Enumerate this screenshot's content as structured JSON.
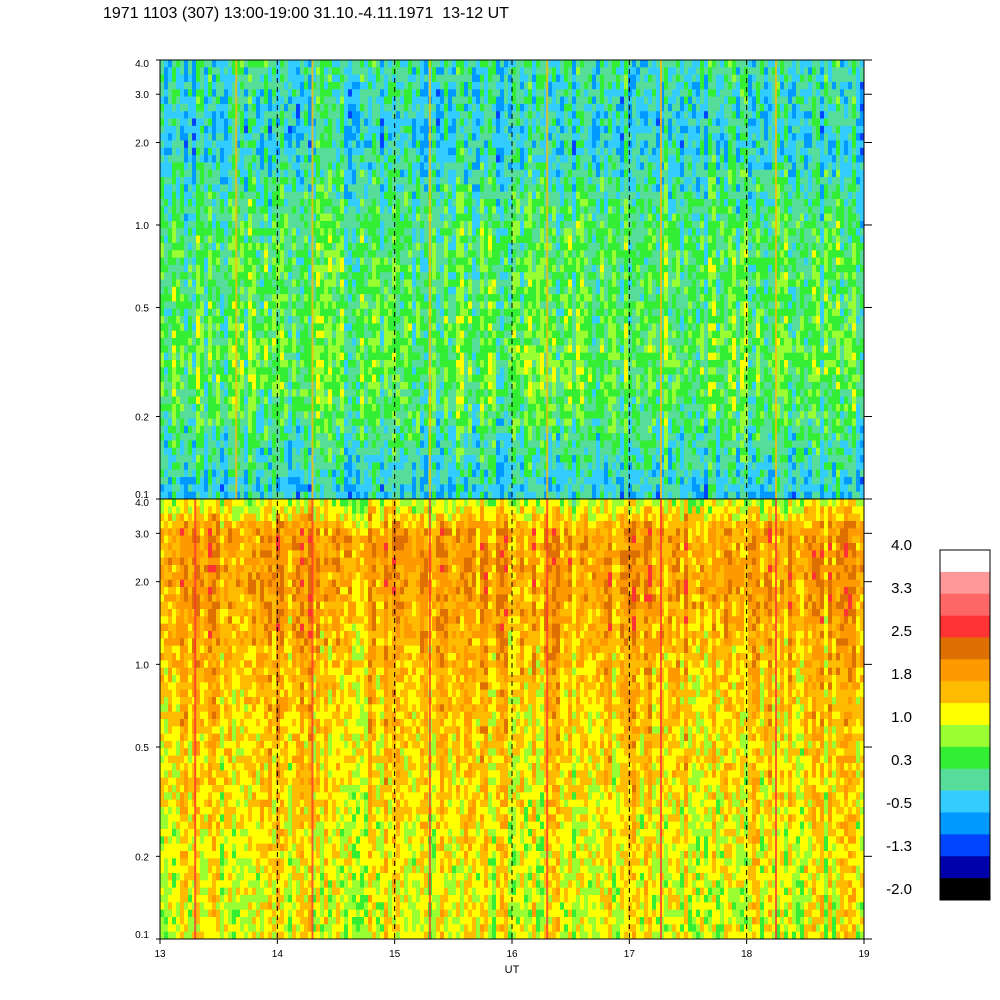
{
  "title": "1971 1103 (307) 13:00-19:00 31.10.-4.11.1971  13-12 UT",
  "chart_data": {
    "type": "heatmap",
    "title": "1971 1103 (307) 13:00-19:00 31.10.-4.11.1971  13-12 UT",
    "xlabel": "UT",
    "x_ticks": [
      13,
      14,
      15,
      16,
      17,
      18,
      19
    ],
    "x_range": [
      13,
      19
    ],
    "y_scale": "log",
    "y_range": [
      0.1,
      4.0
    ],
    "y_tick_labels": [
      "4.0",
      "3.0",
      "2.0",
      "1.0",
      "0.5",
      "0.2",
      "0.1"
    ],
    "y_tick_values": [
      4.0,
      3.0,
      2.0,
      1.0,
      0.5,
      0.2,
      0.1
    ],
    "vertical_dashed_lines_at": [
      14,
      15,
      16,
      17,
      18
    ],
    "panels": [
      {
        "name": "upper",
        "description_levels": "mostly green/teal with blue streaks; cyan near 0.1",
        "typical_value_by_frequency": [
          {
            "y": 4.0,
            "value": 0.0
          },
          {
            "y": 2.0,
            "value": -0.2
          },
          {
            "y": 1.0,
            "value": 0.3
          },
          {
            "y": 0.5,
            "value": 0.4
          },
          {
            "y": 0.3,
            "value": 0.5
          },
          {
            "y": 0.2,
            "value": 0.3
          },
          {
            "y": 0.1,
            "value": -0.3
          }
        ],
        "bright_vertical_streaks_at": [
          13.65,
          14.3,
          15.3,
          16.3,
          17.27,
          18.25
        ]
      },
      {
        "name": "lower",
        "description_levels": "yellow/orange dominant with green streaks; red streaks",
        "typical_value_by_frequency": [
          {
            "y": 4.0,
            "value": 0.9
          },
          {
            "y": 3.0,
            "value": 1.9
          },
          {
            "y": 2.0,
            "value": 1.9
          },
          {
            "y": 1.0,
            "value": 1.6
          },
          {
            "y": 0.5,
            "value": 1.4
          },
          {
            "y": 0.3,
            "value": 1.3
          },
          {
            "y": 0.2,
            "value": 1.2
          },
          {
            "y": 0.1,
            "value": 1.1
          }
        ],
        "red_vertical_streaks_at": [
          13.3,
          14.3,
          15.3,
          16.3,
          17.27,
          18.25
        ]
      }
    ],
    "colorbar": {
      "labels": [
        "4.0",
        "3.3",
        "2.5",
        "1.8",
        "1.0",
        "0.3",
        "-0.5",
        "-1.3",
        "-2.0"
      ],
      "colors_top_to_bottom": [
        "#ffffff",
        "#ff9999",
        "#ff6666",
        "#ff3333",
        "#dd7000",
        "#ff9900",
        "#ffbb00",
        "#ffff00",
        "#99ff33",
        "#33ee33",
        "#55dd99",
        "#33ccff",
        "#0099ff",
        "#0044ff",
        "#0000aa",
        "#000000"
      ]
    }
  }
}
